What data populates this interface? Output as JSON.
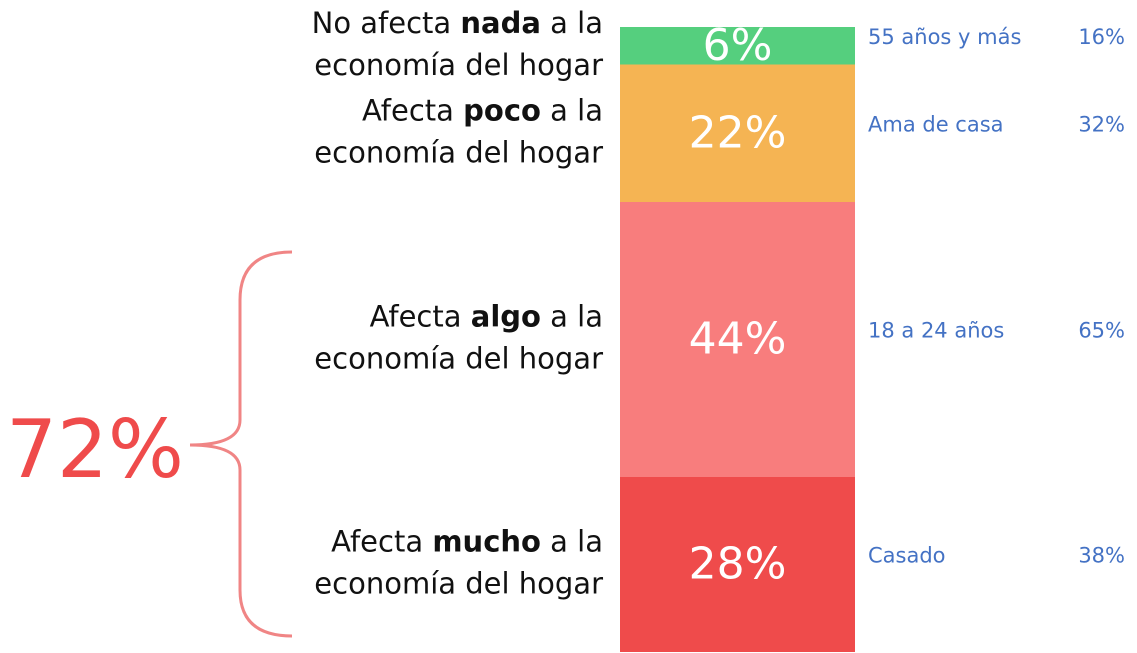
{
  "chart_data": {
    "type": "stacked_bar",
    "ylim": [
      0,
      100
    ],
    "segments": [
      {
        "lead": "Afecta",
        "emphasis": "mucho",
        "tail": "a la",
        "line2": "economía del hogar",
        "value": 28,
        "value_label": "28%",
        "color": "#ef4b4b",
        "profile": "Casado",
        "profile_value": 38,
        "profile_value_label": "38%"
      },
      {
        "lead": "Afecta",
        "emphasis": "algo",
        "tail": "a la",
        "line2": "economía del hogar",
        "value": 44,
        "value_label": "44%",
        "color": "#f87d7d",
        "profile": "18 a 24 años",
        "profile_value": 65,
        "profile_value_label": "65%"
      },
      {
        "lead": "Afecta",
        "emphasis": "poco",
        "tail": "a la",
        "line2": "economía del hogar",
        "value": 22,
        "value_label": "22%",
        "color": "#f5b453",
        "profile": "Ama de casa",
        "profile_value": 32,
        "profile_value_label": "32%"
      },
      {
        "lead": "No afecta",
        "emphasis": "nada",
        "tail": "a la",
        "line2": "economía del hogar",
        "value": 6,
        "value_label": "6%",
        "color": "#55cf7e",
        "profile": "55 años y más",
        "profile_value": 16,
        "profile_value_label": "16%"
      }
    ],
    "annotation": "72%"
  }
}
